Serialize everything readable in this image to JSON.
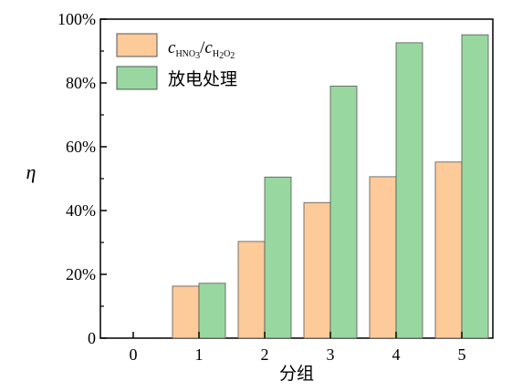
{
  "chart_data": {
    "type": "bar",
    "xlabel": "分组",
    "ylabel": "η",
    "categories": [
      "0",
      "1",
      "2",
      "3",
      "4",
      "5"
    ],
    "ylim": [
      0,
      100
    ],
    "yticks": [
      "0",
      "20%",
      "40%",
      "60%",
      "80%",
      "100%"
    ],
    "legend_position": "top-left",
    "series": [
      {
        "name": "c_HNO3/c_H2O2",
        "name_parts": {
          "c1": "c",
          "sub1": "HNO",
          "sub1_digit": "3",
          "slash": "/",
          "c2": "c",
          "sub2a": "H",
          "sub2a_digit": "2",
          "sub2b": "O",
          "sub2b_digit": "2"
        },
        "color": "#fdca99",
        "values": [
          0,
          16.3,
          30.3,
          42.5,
          50.6,
          55.2
        ]
      },
      {
        "name": "放电处理",
        "color": "#98d8a0",
        "values": [
          0,
          17.2,
          50.5,
          79.0,
          92.6,
          95.1
        ]
      }
    ]
  }
}
